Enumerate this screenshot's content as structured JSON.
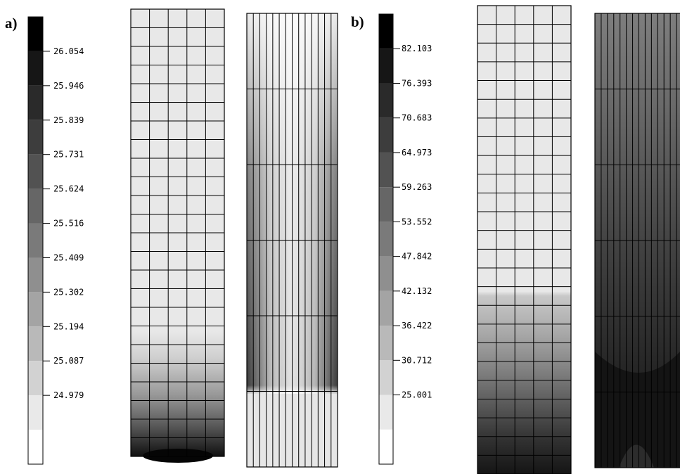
{
  "panels": [
    {
      "label": "a)",
      "levels": [
        "26.054",
        "25.946",
        "25.839",
        "25.731",
        "25.624",
        "25.516",
        "25.409",
        "25.302",
        "25.194",
        "25.087",
        "24.979"
      ],
      "legend_shades": [
        "#000000",
        "#161616",
        "#2a2a2a",
        "#3d3d3d",
        "#525252",
        "#666666",
        "#7a7a7a",
        "#8f8f8f",
        "#a4a4a4",
        "#b9b9b9",
        "#d2d2d2",
        "#e9e9e9",
        "#ffffff"
      ]
    },
    {
      "label": "b)",
      "levels": [
        "82.103",
        "76.393",
        "70.683",
        "64.973",
        "59.263",
        "53.552",
        "47.842",
        "42.132",
        "36.422",
        "30.712",
        "25.001"
      ],
      "legend_shades": [
        "#000000",
        "#161616",
        "#2a2a2a",
        "#3d3d3d",
        "#525252",
        "#666666",
        "#7a7a7a",
        "#8f8f8f",
        "#a4a4a4",
        "#b9b9b9",
        "#d2d2d2",
        "#e9e9e9",
        "#ffffff"
      ]
    }
  ],
  "colors": {
    "line": "#000000",
    "light": "#e8e8e8",
    "dark": "#1a1a1a"
  }
}
